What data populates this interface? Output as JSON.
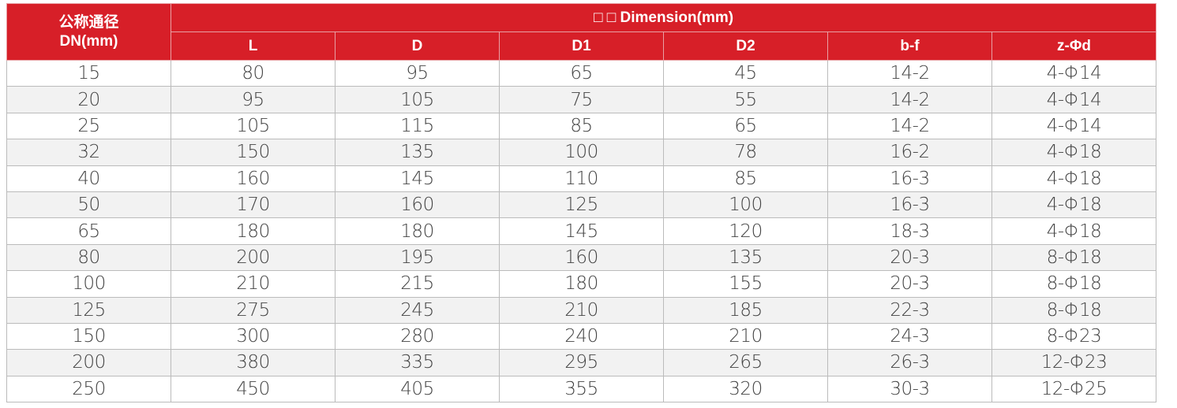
{
  "header": {
    "dn_label_cn": "公称通径",
    "dn_label_en": "DN(mm)",
    "dimension_label": "□ □ Dimension(mm)",
    "columns": [
      "L",
      "D",
      "D1",
      "D2",
      "b-f",
      "z-Φd"
    ]
  },
  "colors": {
    "header_bg": "#d71f28",
    "stripe": "#f2f2f2"
  },
  "rows": [
    [
      "15",
      "80",
      "95",
      "65",
      "45",
      "14-2",
      "4-Φ14"
    ],
    [
      "20",
      "95",
      "105",
      "75",
      "55",
      "14-2",
      "4-Φ14"
    ],
    [
      "25",
      "105",
      "115",
      "85",
      "65",
      "14-2",
      "4-Φ14"
    ],
    [
      "32",
      "150",
      "135",
      "100",
      "78",
      "16-2",
      "4-Φ18"
    ],
    [
      "40",
      "160",
      "145",
      "110",
      "85",
      "16-3",
      "4-Φ18"
    ],
    [
      "50",
      "170",
      "160",
      "125",
      "100",
      "16-3",
      "4-Φ18"
    ],
    [
      "65",
      "180",
      "180",
      "145",
      "120",
      "18-3",
      "4-Φ18"
    ],
    [
      "80",
      "200",
      "195",
      "160",
      "135",
      "20-3",
      "8-Φ18"
    ],
    [
      "100",
      "210",
      "215",
      "180",
      "155",
      "20-3",
      "8-Φ18"
    ],
    [
      "125",
      "275",
      "245",
      "210",
      "185",
      "22-3",
      "8-Φ18"
    ],
    [
      "150",
      "300",
      "280",
      "240",
      "210",
      "24-3",
      "8-Φ23"
    ],
    [
      "200",
      "380",
      "335",
      "295",
      "265",
      "26-3",
      "12-Φ23"
    ],
    [
      "250",
      "450",
      "405",
      "355",
      "320",
      "30-3",
      "12-Φ25"
    ]
  ]
}
